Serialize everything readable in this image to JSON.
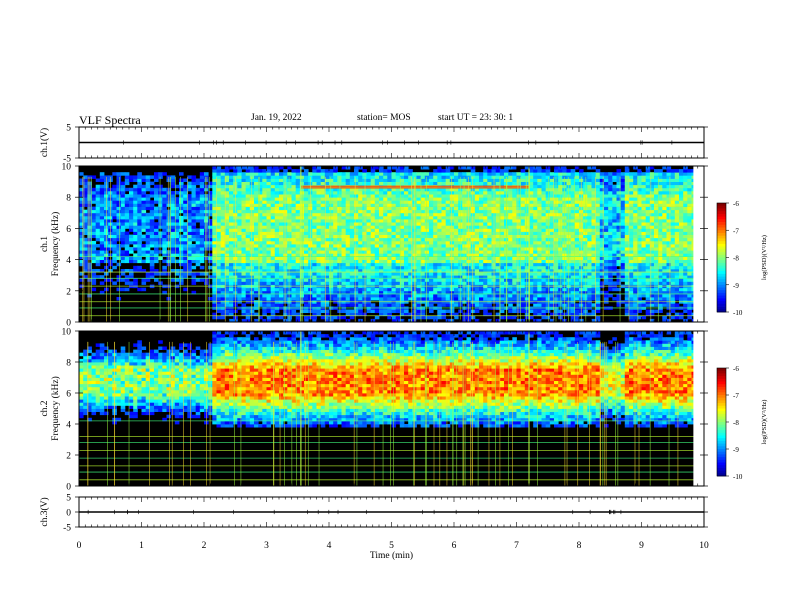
{
  "header": {
    "title": "VLF Spectra",
    "date": "Jan. 19, 2022",
    "station": "station= MOS",
    "start": "start  UT =   23: 30: 1"
  },
  "chart_data": [
    {
      "type": "line",
      "panel": "ch1-waveform",
      "ylabel": "ch.1(V)",
      "ylim": [
        -5,
        5
      ],
      "yticks": [
        "5",
        "-5"
      ],
      "xlim": [
        0,
        10
      ],
      "series": [
        {
          "x": [
            0,
            10
          ],
          "values": [
            0,
            0
          ]
        }
      ]
    },
    {
      "type": "heatmap",
      "panel": "ch1-spectrogram",
      "ylabel": "ch.1\nFrequency (kHz)",
      "ylim": [
        0,
        10
      ],
      "yticks": [
        "0",
        "2",
        "4",
        "6",
        "8",
        "10"
      ],
      "xlim": [
        0,
        10
      ],
      "colorbar": {
        "label": "log(PSD)(V²/Hz)",
        "range": [
          -10,
          -6
        ],
        "ticks": [
          "-6",
          "-7",
          "-8",
          "-9",
          "-10"
        ]
      },
      "dominant_band_khz": [
        1.5,
        9.5
      ],
      "band_level": -8
    },
    {
      "type": "heatmap",
      "panel": "ch2-spectrogram",
      "ylabel": "ch.2\nFrequency (kHz)",
      "ylim": [
        0,
        10
      ],
      "yticks": [
        "0",
        "2",
        "4",
        "6",
        "8",
        "10"
      ],
      "xlim": [
        0,
        10
      ],
      "colorbar": {
        "label": "log(PSD)(V²/Hz)",
        "range": [
          -10,
          -6
        ],
        "ticks": [
          "-6",
          "-7",
          "-8",
          "-9",
          "-10"
        ]
      },
      "dominant_band_khz": [
        5.5,
        8.0
      ],
      "band_level": -7
    },
    {
      "type": "line",
      "panel": "ch3-waveform",
      "ylabel": "ch.3(V)",
      "ylim": [
        -5,
        5
      ],
      "yticks": [
        "5",
        "0",
        "-5"
      ],
      "xlim": [
        0,
        10
      ],
      "xticks": [
        "0",
        "1",
        "2",
        "3",
        "4",
        "5",
        "6",
        "7",
        "8",
        "9",
        "10"
      ],
      "xlabel": "Time (min)",
      "series": [
        {
          "x": [
            0,
            10
          ],
          "values": [
            0,
            0
          ]
        }
      ]
    }
  ]
}
